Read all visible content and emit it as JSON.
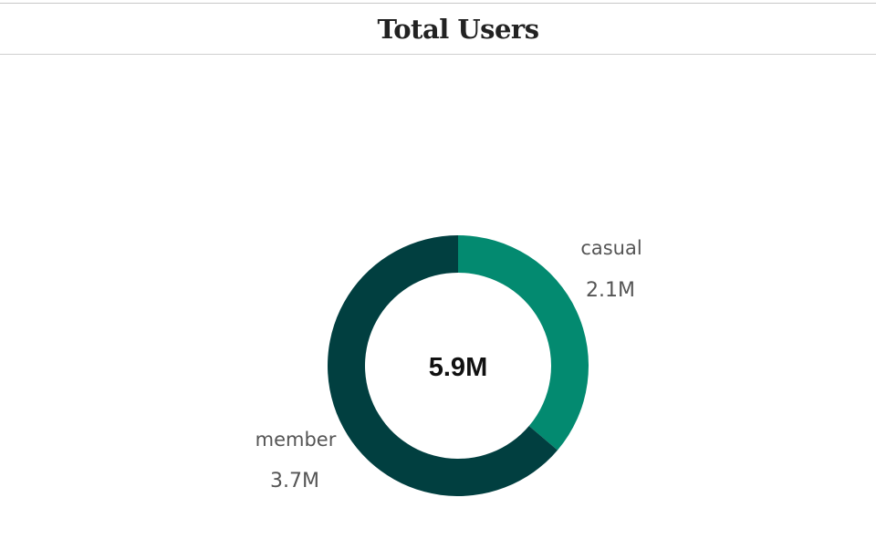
{
  "header": {
    "title": "Total Users"
  },
  "chart_data": {
    "type": "pie",
    "title": "Total Users",
    "center_label": "5.9M",
    "slices": [
      {
        "name": "casual",
        "value": 2.1,
        "label": "2.1M",
        "color": "#038A70"
      },
      {
        "name": "member",
        "value": 3.7,
        "label": "3.7M",
        "color": "#013F40"
      }
    ]
  }
}
